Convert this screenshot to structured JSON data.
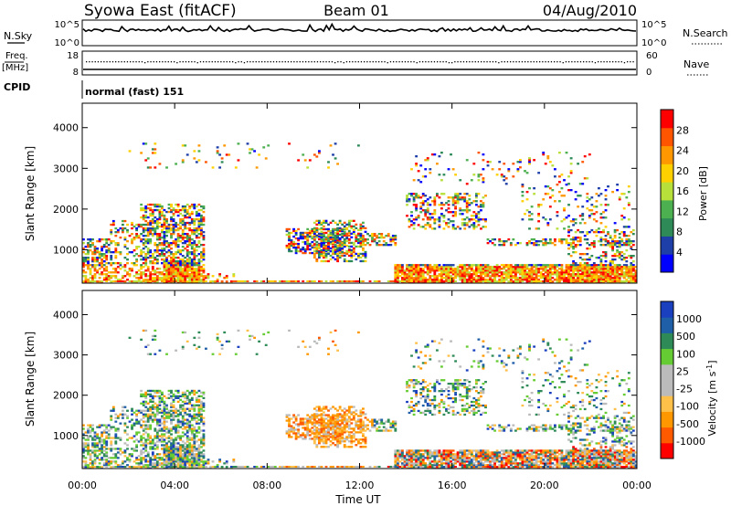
{
  "header": {
    "station": "Syowa East (fitACF)",
    "beam": "Beam 01",
    "date": "04/Aug/2010"
  },
  "nsky_panel": {
    "left_label": "N.Sky",
    "left_ticks": [
      "10^5",
      "10^0"
    ],
    "right_label": "N.Search",
    "right_ticks": [
      "10^5",
      "10^0"
    ]
  },
  "freq_panel": {
    "left_label_1": "Freq.",
    "left_label_2": "[MHz]",
    "left_ticks": [
      "18",
      "8"
    ],
    "right_label": "Nave",
    "right_ticks": [
      "60",
      "0"
    ]
  },
  "cpid": {
    "label": "CPID",
    "value": "normal (fast) 151"
  },
  "colors": {
    "power_scale": [
      "#0000ff",
      "#1f3fa8",
      "#2e8b57",
      "#4caf50",
      "#b8e03a",
      "#ffd000",
      "#ff9800",
      "#ff5500",
      "#ff0000"
    ],
    "velocity_scale": [
      "#ff0000",
      "#ff5a00",
      "#ff9800",
      "#ffc04a",
      "#bbbbbb",
      "#bbbbbb",
      "#66cc33",
      "#2e8b57",
      "#1f5fa8",
      "#1a3fbf"
    ]
  },
  "chart_data": [
    {
      "type": "heatmap",
      "panel": "power",
      "ylabel": "Slant Range [km]",
      "yticks": [
        "1000",
        "2000",
        "3000",
        "4000"
      ],
      "ylim": [
        180,
        4600
      ],
      "xlim_hours": [
        0,
        24
      ],
      "colorbar_label": "Power [dB]",
      "colorbar_ticks": [
        "4",
        "8",
        "12",
        "16",
        "20",
        "24",
        "28"
      ],
      "colorbar_range": [
        0,
        32
      ]
    },
    {
      "type": "heatmap",
      "panel": "velocity",
      "ylabel": "Slant Range [km]",
      "yticks": [
        "1000",
        "2000",
        "3000",
        "4000"
      ],
      "ylim": [
        180,
        4600
      ],
      "xlim_hours": [
        0,
        24
      ],
      "colorbar_label": "Velocity [m s^-1]",
      "colorbar_ticks": [
        "1000",
        "500",
        "100",
        "25",
        "-25",
        "-100",
        "-500",
        "-1000"
      ]
    }
  ],
  "xaxis": {
    "label": "Time UT",
    "ticks": [
      "00:00",
      "04:00",
      "08:00",
      "12:00",
      "16:00",
      "20:00",
      "00:00"
    ]
  }
}
